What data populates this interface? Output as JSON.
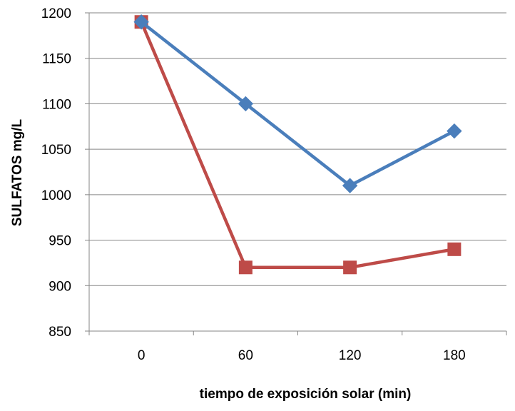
{
  "chart_data": {
    "type": "line",
    "title": "",
    "xlabel": "tiempo de exposición solar (min)",
    "ylabel": "SULFATOS mg/L",
    "categories": [
      "0",
      "60",
      "120",
      "180"
    ],
    "ylim": [
      850,
      1200
    ],
    "yticks": [
      850,
      900,
      950,
      1000,
      1050,
      1100,
      1150,
      1200
    ],
    "grid": "horizontal",
    "legend": "none",
    "series": [
      {
        "values": [
          1190,
          1100,
          1010,
          1070
        ],
        "color": "#4a7ebb",
        "marker": "diamond"
      },
      {
        "values": [
          1190,
          920,
          920,
          940
        ],
        "color": "#be4b48",
        "marker": "square"
      }
    ]
  }
}
